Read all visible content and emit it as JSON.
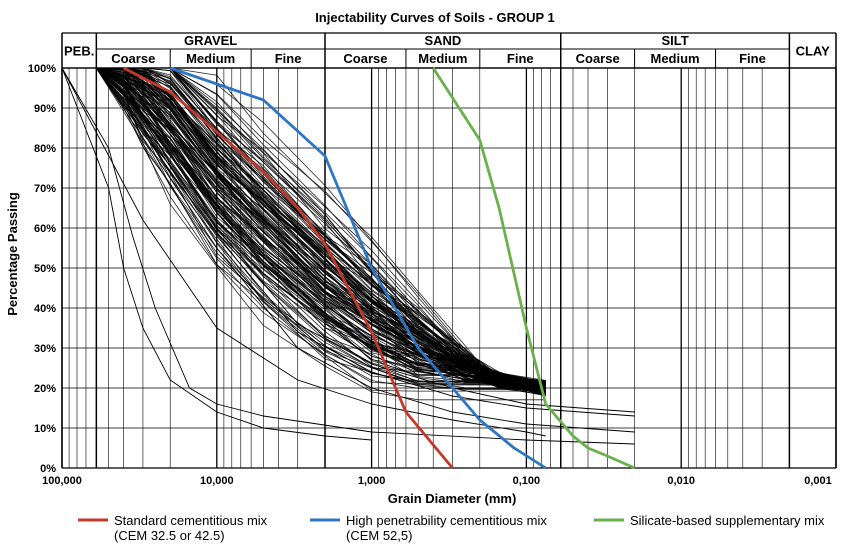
{
  "chart_data": {
    "type": "line",
    "title": "Injectability Curves of Soils - GROUP 1",
    "xlabel": "Grain Diameter (mm)",
    "ylabel": "Percentage Passing",
    "x_scale": "log-reversed",
    "xlim": [
      100,
      0.001
    ],
    "ylim": [
      0,
      100
    ],
    "grid": true,
    "x_ticks": [
      "100,000",
      "10,000",
      "1,000",
      "0,100",
      "0,010",
      "0,001"
    ],
    "y_ticks": [
      "0%",
      "10%",
      "20%",
      "30%",
      "40%",
      "50%",
      "60%",
      "70%",
      "80%",
      "90%",
      "100%"
    ],
    "soil_classes": [
      {
        "label": "PEB.",
        "subs": []
      },
      {
        "label": "GRAVEL",
        "subs": [
          "Coarse",
          "Medium",
          "Fine"
        ]
      },
      {
        "label": "SAND",
        "subs": [
          "Coarse",
          "Medium",
          "Fine"
        ]
      },
      {
        "label": "SILT",
        "subs": [
          "Coarse",
          "Medium",
          "Fine"
        ]
      },
      {
        "label": "CLAY",
        "subs": []
      }
    ],
    "legend_position": "bottom",
    "series": [
      {
        "name": "Standard cementitious mix\n(CEM 32.5 or 42.5)",
        "legend_lines": [
          "Standard cementitious mix",
          "(CEM 32.5 or 42.5)"
        ],
        "color": "#c0392b",
        "x": [
          40,
          20,
          10,
          5,
          3,
          2,
          1,
          0.6,
          0.3
        ],
        "y": [
          100,
          94,
          84,
          74,
          65,
          56,
          34,
          14,
          0
        ]
      },
      {
        "name": "High penetrability cementitious mix\n(CEM 52,5)",
        "legend_lines": [
          "High penetrability cementitious mix",
          "(CEM 52,5)"
        ],
        "color": "#2e75c3",
        "x": [
          20,
          5,
          2,
          1,
          0.5,
          0.3,
          0.2,
          0.12,
          0.075
        ],
        "y": [
          100,
          92,
          78,
          50,
          30,
          20,
          12,
          5,
          0
        ]
      },
      {
        "name": "Silicate-based supplementary mix",
        "legend_lines": [
          "Silicate-based supplementary mix"
        ],
        "color": "#6ab04c",
        "x": [
          0.4,
          0.2,
          0.15,
          0.1,
          0.075,
          0.05,
          0.04,
          0.03,
          0.02
        ],
        "y": [
          100,
          82,
          65,
          35,
          16,
          8,
          5,
          3,
          0
        ]
      }
    ],
    "soil_samples": {
      "count": 150,
      "x": [
        60,
        40,
        30,
        20,
        10,
        5,
        2,
        1,
        0.5,
        0.25,
        0.15,
        0.075
      ],
      "typical_y": [
        100,
        98,
        94,
        87,
        72,
        60,
        46,
        37,
        30,
        25,
        22,
        20
      ],
      "spread": "wide band, lower end ranging approximately 3%-30% at 0.075 mm",
      "color": "#000000"
    }
  }
}
